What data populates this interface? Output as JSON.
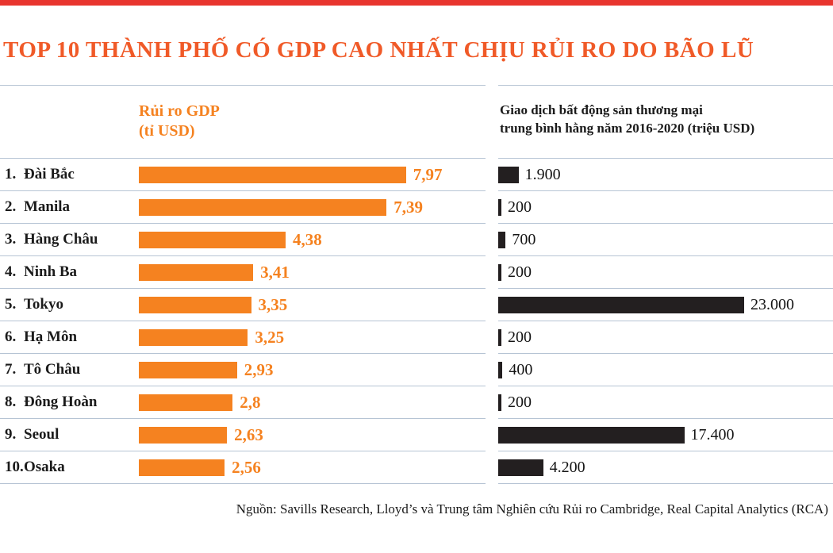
{
  "page": {
    "title": "TOP 10 THÀNH PHỐ CÓ GDP CAO NHẤT CHỊU RỦI RO DO BÃO LŨ",
    "source": "Nguồn: Savills Research, Lloyd’s và Trung tâm Nghiên cứu Rủi ro Cambridge, Real Capital Analytics (RCA)"
  },
  "colors": {
    "top_strip": "#e8352e",
    "title": "#f05a28",
    "gdp_bar": "#f58220",
    "transaction_bar": "#231f20",
    "divider": "#b6c4d4"
  },
  "headers": {
    "left": {
      "line1": "Rủi ro GDP",
      "line2": "(tỉ USD)"
    },
    "right": {
      "line1": "Giao dịch bất động sản thương mại",
      "line2": "trung bình hằng năm 2016-2020 (triệu USD)"
    }
  },
  "chart_data": {
    "type": "bar",
    "orientation": "horizontal",
    "title": "TOP 10 THÀNH PHỐ CÓ GDP CAO NHẤT CHỊU RỦI RO DO BÃO LŨ",
    "ranks": [
      "1.",
      "2.",
      "3.",
      "4.",
      "5.",
      "6.",
      "7.",
      "8.",
      "9.",
      "10."
    ],
    "categories": [
      "Đài Bắc",
      "Manila",
      "Hàng Châu",
      "Ninh Ba",
      "Tokyo",
      "Hạ Môn",
      "Tô Châu",
      "Đông Hoàn",
      "Seoul",
      "Osaka"
    ],
    "series": [
      {
        "name": "Rủi ro GDP (tỉ USD)",
        "color": "#f58220",
        "axis_max": 8,
        "values": [
          7.97,
          7.39,
          4.38,
          3.41,
          3.35,
          3.25,
          2.93,
          2.8,
          2.63,
          2.56
        ],
        "labels": [
          "7,97",
          "7,39",
          "4,38",
          "3,41",
          "3,35",
          "3,25",
          "2,93",
          "2,8",
          "2,63",
          "2,56"
        ]
      },
      {
        "name": "Giao dịch bất động sản thương mại trung bình hằng năm 2016-2020 (triệu USD)",
        "color": "#231f20",
        "axis_max": 23000,
        "values": [
          1900,
          200,
          700,
          200,
          23000,
          200,
          400,
          200,
          17400,
          4200
        ],
        "labels": [
          "1.900",
          "200",
          "700",
          "200",
          "23.000",
          "200",
          "400",
          "200",
          "17.400",
          "4.200"
        ]
      }
    ],
    "legend_position": "none",
    "grid": false,
    "source": "Nguồn: Savills Research, Lloyd’s và Trung tâm Nghiên cứu Rủi ro Cambridge, Real Capital Analytics (RCA)"
  }
}
